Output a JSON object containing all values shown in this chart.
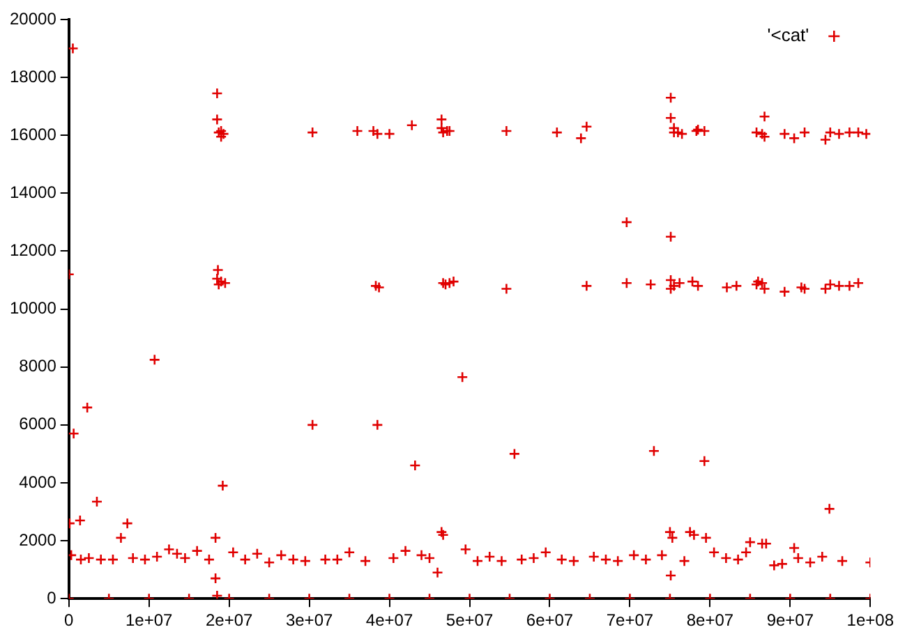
{
  "chart_data": {
    "type": "scatter",
    "legend": "top right",
    "grid": false,
    "marker": "cross",
    "xlim": [
      0,
      100000000
    ],
    "ylim": [
      0,
      20000
    ],
    "xticks": [
      0,
      {
        "value": 10000000,
        "label": "1e+07"
      },
      {
        "value": 20000000,
        "label": "2e+07"
      },
      {
        "value": 30000000,
        "label": "3e+07"
      },
      {
        "value": 40000000,
        "label": "4e+07"
      },
      {
        "value": 50000000,
        "label": "5e+07"
      },
      {
        "value": 60000000,
        "label": "6e+07"
      },
      {
        "value": 70000000,
        "label": "7e+07"
      },
      {
        "value": 80000000,
        "label": "8e+07"
      },
      {
        "value": 90000000,
        "label": "9e+07"
      },
      {
        "value": 100000000,
        "label": "1e+08"
      }
    ],
    "yticks": [
      0,
      2000,
      4000,
      6000,
      8000,
      10000,
      12000,
      14000,
      16000,
      18000,
      20000
    ],
    "series": [
      {
        "name": "'<cat'",
        "color": "#e00000",
        "x": [
          500000,
          0,
          18500000,
          18500000,
          18700000,
          19000000,
          19000000,
          19300000,
          18600000,
          18500000,
          18700000,
          19000000,
          19500000,
          30400000,
          30400000,
          36000000,
          38000000,
          38500000,
          40000000,
          42800000,
          38300000,
          38700000,
          38500000,
          46500000,
          46500000,
          46700000,
          47200000,
          47500000,
          46700000,
          47000000,
          47500000,
          48000000,
          54600000,
          54600000,
          60900000,
          63900000,
          64600000,
          64600000,
          69600000,
          69600000,
          72600000,
          75100000,
          75100000,
          75100000,
          75100000,
          75100000,
          75500000,
          75500000,
          76000000,
          76500000,
          75500000,
          76200000,
          78300000,
          78500000,
          79300000,
          77800000,
          78500000,
          82100000,
          83300000,
          85800000,
          86500000,
          86800000,
          86800000,
          85800000,
          86500000,
          86800000,
          86000000,
          89300000,
          89300000,
          90500000,
          91800000,
          91800000,
          91400000,
          94400000,
          94400000,
          95000000,
          95000000,
          96100000,
          96100000,
          97400000,
          97400000,
          98500000,
          98500000,
          99500000,
          10700000,
          2300000,
          600000,
          3500000,
          1400000,
          7300000,
          100000,
          19200000,
          43200000,
          49100000,
          55600000,
          73000000,
          79300000,
          94900000,
          18300000,
          18300000,
          18500000,
          46500000,
          46700000,
          46000000,
          75000000,
          75300000,
          75100000,
          77500000,
          78000000,
          79500000,
          85000000,
          86500000,
          87000000,
          90500000,
          300000,
          1500000,
          2500000,
          4000000,
          5500000,
          6500000,
          8000000,
          9500000,
          11000000,
          12500000,
          13500000,
          14500000,
          16000000,
          17500000,
          20500000,
          22000000,
          23500000,
          25000000,
          26500000,
          28000000,
          29500000,
          32000000,
          33500000,
          35000000,
          37000000,
          40500000,
          42000000,
          44000000,
          45000000,
          49500000,
          51000000,
          52500000,
          54000000,
          56500000,
          58000000,
          59500000,
          61500000,
          63000000,
          65500000,
          67000000,
          68500000,
          70500000,
          72000000,
          74000000,
          76800000,
          80500000,
          82000000,
          83500000,
          84500000,
          88000000,
          89000000,
          91000000,
          92500000,
          94000000,
          96500000,
          100000000,
          0,
          5000000,
          10000000,
          15000000,
          20000000,
          25000000,
          30000000,
          35000000,
          40000000,
          45000000,
          50000000,
          55000000,
          60000000,
          65000000,
          70000000,
          75000000,
          80000000,
          85000000,
          90000000,
          95000000,
          100000000
        ],
        "values": [
          19000,
          11200,
          17450,
          16550,
          16100,
          16150,
          15950,
          16050,
          11350,
          11050,
          10850,
          10950,
          10900,
          16100,
          6000,
          16150,
          16150,
          16050,
          16050,
          16350,
          10800,
          10750,
          6000,
          16550,
          16250,
          16100,
          16150,
          16150,
          10900,
          10850,
          10900,
          10950,
          16150,
          10700,
          16100,
          15900,
          16300,
          10800,
          13000,
          10900,
          10850,
          17300,
          16600,
          12500,
          11000,
          10700,
          16250,
          16100,
          16100,
          16050,
          10800,
          10900,
          16150,
          16200,
          16150,
          10950,
          10800,
          10750,
          10800,
          16100,
          16050,
          16650,
          15950,
          10850,
          10900,
          10700,
          10950,
          16050,
          10600,
          15900,
          16100,
          10700,
          10750,
          15850,
          10700,
          16100,
          10850,
          16050,
          10800,
          16100,
          10800,
          16100,
          10900,
          16050,
          8250,
          6600,
          5700,
          3350,
          2700,
          2600,
          2600,
          3900,
          4600,
          7650,
          5000,
          5100,
          4750,
          3100,
          2100,
          700,
          100,
          2300,
          2200,
          900,
          2300,
          2100,
          800,
          2300,
          2200,
          2100,
          1950,
          1900,
          1900,
          1750,
          1500,
          1350,
          1400,
          1350,
          1350,
          2100,
          1400,
          1350,
          1450,
          1700,
          1550,
          1400,
          1650,
          1350,
          1600,
          1350,
          1550,
          1250,
          1500,
          1350,
          1300,
          1350,
          1350,
          1600,
          1300,
          1400,
          1650,
          1500,
          1400,
          1700,
          1300,
          1450,
          1300,
          1350,
          1400,
          1600,
          1350,
          1300,
          1450,
          1350,
          1300,
          1500,
          1350,
          1500,
          1300,
          1600,
          1400,
          1350,
          1600,
          1150,
          1200,
          1400,
          1250,
          1450,
          1300,
          1250,
          0,
          0,
          0,
          0,
          0,
          0,
          0,
          0,
          0,
          0,
          0,
          0,
          0,
          0,
          0,
          0,
          0,
          0,
          0,
          0,
          0
        ]
      }
    ]
  }
}
